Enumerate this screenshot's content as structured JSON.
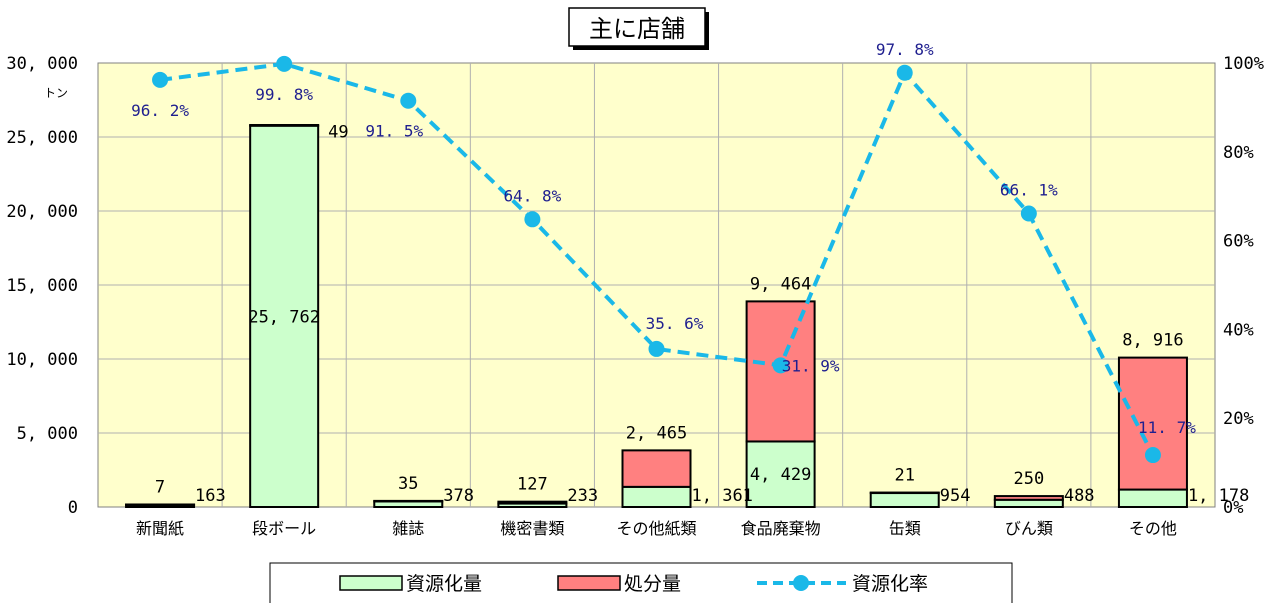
{
  "chart_data": {
    "type": "bar",
    "title": "主に店舗",
    "unit_label": "トン",
    "categories": [
      "新聞紙",
      "段ボール",
      "雑誌",
      "機密書類",
      "その他紙類",
      "食品廃棄物",
      "缶類",
      "びん類",
      "その他"
    ],
    "series": [
      {
        "name": "資源化量",
        "type": "bar",
        "values": [
          163,
          25762,
          378,
          233,
          1361,
          4429,
          954,
          488,
          1178
        ],
        "labels": [
          "163",
          "25, 762",
          "378",
          "233",
          "1, 361",
          "4, 429",
          "954",
          "488",
          "1, 178"
        ],
        "color": "#ccffcc"
      },
      {
        "name": "処分量",
        "type": "bar",
        "values": [
          7,
          49,
          35,
          127,
          2465,
          9464,
          21,
          250,
          8916
        ],
        "labels": [
          "7",
          "49",
          "35",
          "127",
          "2, 465",
          "9, 464",
          "21",
          "250",
          "8, 916"
        ],
        "color": "#ff8080"
      },
      {
        "name": "資源化率",
        "type": "line",
        "axis": "right",
        "values": [
          96.2,
          99.8,
          91.5,
          64.8,
          35.6,
          31.9,
          97.8,
          66.1,
          11.7
        ],
        "labels": [
          "96. 2%",
          "99. 8%",
          "91. 5%",
          "64. 8%",
          "35. 6%",
          "31. 9%",
          "97. 8%",
          "66. 1%",
          "11. 7%"
        ],
        "color": "#1ab8e8"
      }
    ],
    "y_left": {
      "range": [
        0,
        30000
      ],
      "ticks": [
        0,
        5000,
        10000,
        15000,
        20000,
        25000,
        30000
      ],
      "tick_labels": [
        "0",
        "5, 000",
        "10, 000",
        "15, 000",
        "20, 000",
        "25, 000",
        "30, 000"
      ]
    },
    "y_right": {
      "range": [
        0,
        100
      ],
      "ticks": [
        0,
        20,
        40,
        60,
        80,
        100
      ],
      "tick_labels": [
        "0%",
        "20%",
        "40%",
        "60%",
        "80%",
        "100%"
      ]
    },
    "grid": true,
    "plot_background": "#ffffcc",
    "legend_position": "bottom"
  }
}
